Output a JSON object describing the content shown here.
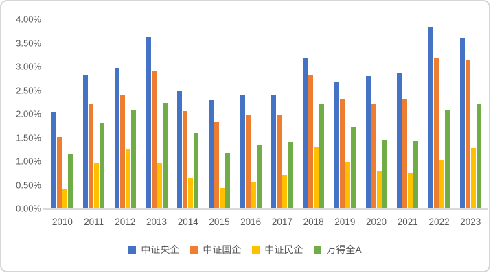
{
  "colors": {
    "axis_line": "#d9d9d9",
    "text": "#595959",
    "border": "#d6d6d6",
    "background": "#ffffff"
  },
  "chart_data": {
    "type": "bar",
    "title": "",
    "xlabel": "",
    "ylabel": "",
    "ylim": [
      0,
      4
    ],
    "ytick_step": 0.5,
    "ytick_labels": [
      "0.00%",
      "0.50%",
      "1.00%",
      "1.50%",
      "2.00%",
      "2.50%",
      "3.00%",
      "3.50%",
      "4.00%"
    ],
    "grid": false,
    "legend_position": "bottom",
    "categories": [
      "2010",
      "2011",
      "2012",
      "2013",
      "2014",
      "2015",
      "2016",
      "2017",
      "2018",
      "2019",
      "2020",
      "2021",
      "2022",
      "2023"
    ],
    "series": [
      {
        "name": "中证央企",
        "color": "#4472C4",
        "values": [
          2.05,
          2.83,
          2.97,
          3.62,
          2.48,
          2.29,
          2.4,
          2.41,
          3.18,
          2.68,
          2.8,
          2.85,
          3.82,
          3.59
        ]
      },
      {
        "name": "中证国企",
        "color": "#ED7D31",
        "values": [
          1.51,
          2.21,
          2.41,
          2.92,
          2.06,
          1.82,
          1.97,
          1.98,
          2.83,
          2.32,
          2.22,
          2.3,
          3.17,
          3.13
        ]
      },
      {
        "name": "中证民企",
        "color": "#FFC000",
        "values": [
          0.41,
          0.96,
          1.26,
          0.95,
          0.65,
          0.43,
          0.56,
          0.71,
          1.31,
          0.99,
          0.78,
          0.75,
          1.03,
          1.27
        ]
      },
      {
        "name": "万得全A",
        "color": "#70AD47",
        "values": [
          1.14,
          1.81,
          2.09,
          2.23,
          1.6,
          1.18,
          1.33,
          1.4,
          2.21,
          1.73,
          1.45,
          1.44,
          2.08,
          2.21
        ]
      }
    ]
  }
}
